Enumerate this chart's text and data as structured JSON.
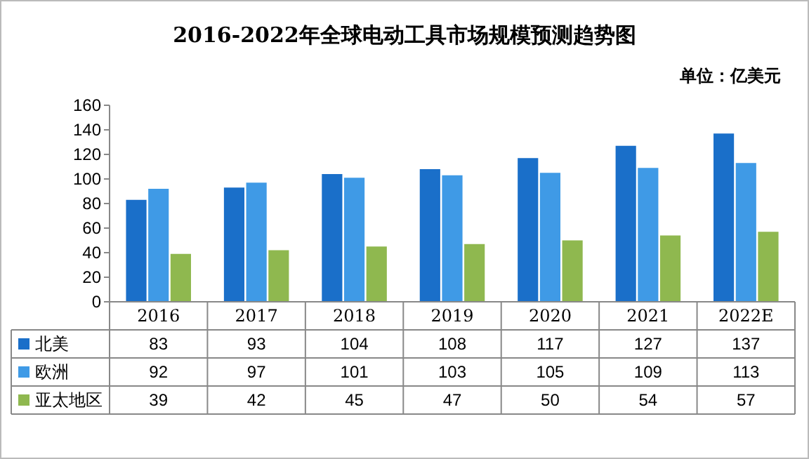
{
  "chart_data": {
    "type": "bar",
    "title": "2016-2022年全球电动工具市场规模预测趋势图",
    "annotations": [
      "单位：亿美元"
    ],
    "categories": [
      "2016",
      "2017",
      "2018",
      "2019",
      "2020",
      "2021",
      "2022E"
    ],
    "series": [
      {
        "name": "北美",
        "color": "#1a6fc9",
        "values": [
          83,
          93,
          104,
          108,
          117,
          127,
          137
        ]
      },
      {
        "name": "欧洲",
        "color": "#3f9ae6",
        "values": [
          92,
          97,
          101,
          103,
          105,
          109,
          113
        ]
      },
      {
        "name": "亚太地区",
        "color": "#8fb84f",
        "values": [
          39,
          42,
          45,
          47,
          50,
          54,
          57
        ]
      }
    ],
    "ylim": [
      0,
      160
    ],
    "yticks": [
      0,
      20,
      40,
      60,
      80,
      100,
      120,
      140,
      160
    ],
    "grid": false,
    "legend": "bottom",
    "data_labels": true
  }
}
